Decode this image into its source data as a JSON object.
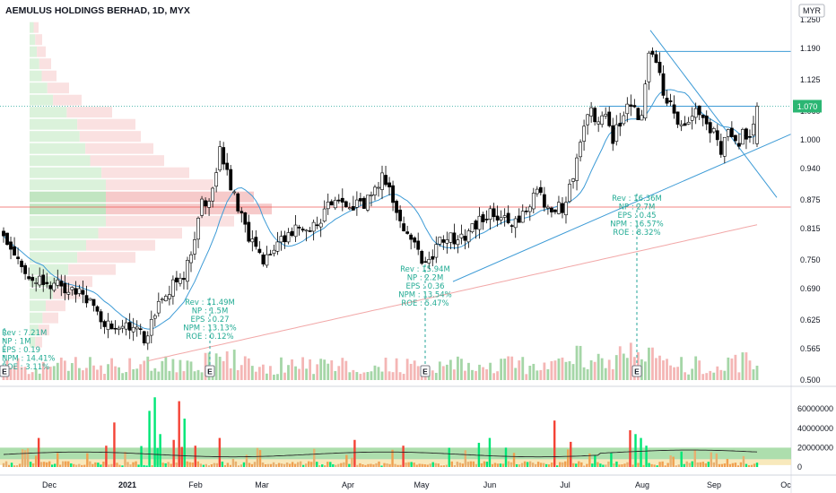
{
  "header": {
    "title": "AEMULUS HOLDINGS BERHAD, 1D, MYX",
    "currency": "MYR"
  },
  "colors": {
    "up": "#26a69a",
    "down": "#ef5350",
    "up_vol": "#a5d6a7",
    "down_vol": "#f4b6b5",
    "trend": "#3d9bd6",
    "ma_slow": "#f2a8a8",
    "fund_text": "#22ab94",
    "price_tag": "#2bb673",
    "bright_green": "#00e676",
    "bright_red": "#f44336"
  },
  "chart_data": {
    "type": "candlestick",
    "title": "AEMULUS HOLDINGS BERHAD, 1D, MYX",
    "currency": "MYR",
    "y_ticks": [
      "1.250",
      "1.190",
      "1.125",
      "1.060",
      "1.000",
      "0.940",
      "0.875",
      "0.815",
      "0.750",
      "0.690",
      "0.625",
      "0.565",
      "0.500"
    ],
    "ylim": [
      0.5,
      1.25
    ],
    "x_ticks": [
      "Dec",
      "2021",
      "Feb",
      "Mar",
      "Apr",
      "May",
      "Jun",
      "Jul",
      "Aug",
      "Sep",
      "Oc"
    ],
    "last_price": "1.070",
    "resistance_level": 1.184,
    "poc_level": 0.86,
    "close_anchors": [
      [
        0,
        0.8
      ],
      [
        4,
        0.74
      ],
      [
        9,
        0.71
      ],
      [
        14,
        0.7
      ],
      [
        19,
        0.69
      ],
      [
        24,
        0.66
      ],
      [
        27,
        0.62
      ],
      [
        31,
        0.6
      ],
      [
        36,
        0.62
      ],
      [
        39,
        0.58
      ],
      [
        42,
        0.64
      ],
      [
        46,
        0.69
      ],
      [
        50,
        0.72
      ],
      [
        53,
        0.8
      ],
      [
        55,
        0.88
      ],
      [
        57,
        0.86
      ],
      [
        60,
        0.98
      ],
      [
        62,
        0.93
      ],
      [
        65,
        0.86
      ],
      [
        67,
        0.82
      ],
      [
        69,
        0.78
      ],
      [
        72,
        0.74
      ],
      [
        75,
        0.78
      ],
      [
        78,
        0.8
      ],
      [
        81,
        0.82
      ],
      [
        84,
        0.81
      ],
      [
        87,
        0.83
      ],
      [
        90,
        0.86
      ],
      [
        93,
        0.88
      ],
      [
        96,
        0.87
      ],
      [
        99,
        0.86
      ],
      [
        102,
        0.88
      ],
      [
        105,
        0.93
      ],
      [
        107,
        0.9
      ],
      [
        109,
        0.86
      ],
      [
        112,
        0.8
      ],
      [
        115,
        0.76
      ],
      [
        118,
        0.75
      ],
      [
        120,
        0.78
      ],
      [
        123,
        0.8
      ],
      [
        126,
        0.79
      ],
      [
        129,
        0.81
      ],
      [
        132,
        0.83
      ],
      [
        135,
        0.85
      ],
      [
        138,
        0.84
      ],
      [
        141,
        0.83
      ],
      [
        144,
        0.84
      ],
      [
        146,
        0.86
      ],
      [
        148,
        0.9
      ],
      [
        150,
        0.86
      ],
      [
        152,
        0.85
      ],
      [
        155,
        0.86
      ],
      [
        157,
        0.9
      ],
      [
        159,
        0.96
      ],
      [
        161,
        1.02
      ],
      [
        163,
        1.06
      ],
      [
        165,
        1.03
      ],
      [
        167,
        1.05
      ],
      [
        169,
        1.0
      ],
      [
        171,
        1.04
      ],
      [
        173,
        1.08
      ],
      [
        175,
        1.06
      ],
      [
        177,
        1.05
      ],
      [
        179,
        1.19
      ],
      [
        181,
        1.16
      ],
      [
        183,
        1.1
      ],
      [
        185,
        1.07
      ],
      [
        187,
        1.03
      ],
      [
        189,
        1.04
      ],
      [
        191,
        1.06
      ],
      [
        193,
        1.05
      ],
      [
        195,
        1.04
      ],
      [
        197,
        1.01
      ],
      [
        199,
        0.98
      ],
      [
        201,
        1.03
      ],
      [
        203,
        0.99
      ],
      [
        205,
        1.01
      ],
      [
        207,
        1.0
      ],
      [
        209,
        1.07
      ]
    ],
    "volume_axis_ticks": [
      "60000000",
      "40000000",
      "20000000",
      "0"
    ],
    "volume_ylim": [
      0,
      75000000
    ],
    "earnings_labels": [
      {
        "lines": [
          "Rev : 11.49M",
          "NP : 1.5M",
          "EPS : 0.27",
          "NPM : 13.13%",
          "ROE : 0.12%"
        ]
      },
      {
        "lines": [
          "Rev : 15.94M",
          "NP : 2.2M",
          "EPS : 0.36",
          "NPM : 13.54%",
          "ROE : 5.47%"
        ]
      },
      {
        "lines": [
          "Rev : 16.36M",
          "NP : 2.7M",
          "EPS : 0.45",
          "NPM : 16.57%",
          "ROE : 8.32%"
        ]
      },
      {
        "lines": [
          "Rev : 7.21M",
          "NP : 1M",
          "EPS : 0.19",
          "NPM : 14.41%",
          "ROE : 3.11%"
        ]
      }
    ],
    "earnings_marker": "E"
  }
}
